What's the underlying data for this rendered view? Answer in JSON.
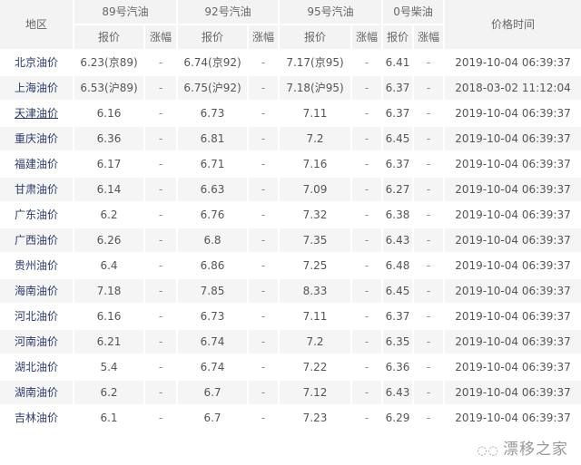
{
  "header": {
    "region": "地区",
    "time": "价格时间",
    "groups": [
      "89号汽油",
      "92号汽油",
      "95号汽油",
      "0号柴油"
    ],
    "price": "报价",
    "change": "涨幅"
  },
  "rows": [
    {
      "region": "北京油价",
      "p89": "6.23(京89)",
      "c89": "-",
      "p92": "6.74(京92)",
      "c92": "-",
      "p95": "7.17(京95)",
      "c95": "-",
      "p0": "6.41",
      "c0": "-",
      "time": "2019-10-04 06:39:37"
    },
    {
      "region": "上海油价",
      "p89": "6.53(沪89)",
      "c89": "-",
      "p92": "6.75(沪92)",
      "c92": "-",
      "p95": "7.18(沪95)",
      "c95": "-",
      "p0": "6.37",
      "c0": "-",
      "time": "2018-03-02 11:12:04"
    },
    {
      "region": "天津油价",
      "p89": "6.16",
      "c89": "-",
      "p92": "6.73",
      "c92": "-",
      "p95": "7.11",
      "c95": "-",
      "p0": "6.37",
      "c0": "-",
      "time": "2019-10-04 06:39:37"
    },
    {
      "region": "重庆油价",
      "p89": "6.36",
      "c89": "-",
      "p92": "6.81",
      "c92": "-",
      "p95": "7.2",
      "c95": "-",
      "p0": "6.45",
      "c0": "-",
      "time": "2019-10-04 06:39:37"
    },
    {
      "region": "福建油价",
      "p89": "6.17",
      "c89": "-",
      "p92": "6.71",
      "c92": "-",
      "p95": "7.16",
      "c95": "-",
      "p0": "6.37",
      "c0": "-",
      "time": "2019-10-04 06:39:37"
    },
    {
      "region": "甘肃油价",
      "p89": "6.14",
      "c89": "-",
      "p92": "6.63",
      "c92": "-",
      "p95": "7.09",
      "c95": "-",
      "p0": "6.27",
      "c0": "-",
      "time": "2019-10-04 06:39:37"
    },
    {
      "region": "广东油价",
      "p89": "6.2",
      "c89": "-",
      "p92": "6.76",
      "c92": "-",
      "p95": "7.32",
      "c95": "-",
      "p0": "6.38",
      "c0": "-",
      "time": "2019-10-04 06:39:37"
    },
    {
      "region": "广西油价",
      "p89": "6.26",
      "c89": "-",
      "p92": "6.8",
      "c92": "-",
      "p95": "7.35",
      "c95": "-",
      "p0": "6.43",
      "c0": "-",
      "time": "2019-10-04 06:39:37"
    },
    {
      "region": "贵州油价",
      "p89": "6.4",
      "c89": "-",
      "p92": "6.86",
      "c92": "-",
      "p95": "7.25",
      "c95": "-",
      "p0": "6.48",
      "c0": "-",
      "time": "2019-10-04 06:39:37"
    },
    {
      "region": "海南油价",
      "p89": "7.18",
      "c89": "-",
      "p92": "7.85",
      "c92": "-",
      "p95": "8.33",
      "c95": "-",
      "p0": "6.45",
      "c0": "-",
      "time": "2019-10-04 06:39:37"
    },
    {
      "region": "河北油价",
      "p89": "6.16",
      "c89": "-",
      "p92": "6.73",
      "c92": "-",
      "p95": "7.11",
      "c95": "-",
      "p0": "6.37",
      "c0": "-",
      "time": "2019-10-04 06:39:37"
    },
    {
      "region": "河南油价",
      "p89": "6.21",
      "c89": "-",
      "p92": "6.74",
      "c92": "-",
      "p95": "7.2",
      "c95": "-",
      "p0": "6.35",
      "c0": "-",
      "time": "2019-10-04 06:39:37"
    },
    {
      "region": "湖北油价",
      "p89": "5.4",
      "c89": "-",
      "p92": "6.74",
      "c92": "-",
      "p95": "7.22",
      "c95": "-",
      "p0": "6.36",
      "c0": "-",
      "time": "2019-10-04 06:39:37"
    },
    {
      "region": "湖南油价",
      "p89": "6.2",
      "c89": "-",
      "p92": "6.7",
      "c92": "-",
      "p95": "7.12",
      "c95": "-",
      "p0": "6.43",
      "c0": "-",
      "time": "2019-10-04 06:39:37"
    },
    {
      "region": "吉林油价",
      "p89": "6.1",
      "c89": "-",
      "p92": "6.7",
      "c92": "-",
      "p95": "7.23",
      "c95": "-",
      "p0": "6.29",
      "c0": "-",
      "time": "2019-10-04 06:39:37"
    }
  ],
  "watermark": {
    "text": "漂移之家",
    "icon": "wechat-icon"
  },
  "colors": {
    "region_link": "#2b3a6b",
    "header_bg": "#f3f3f3",
    "stripe_bg": "#f5f5f5"
  }
}
